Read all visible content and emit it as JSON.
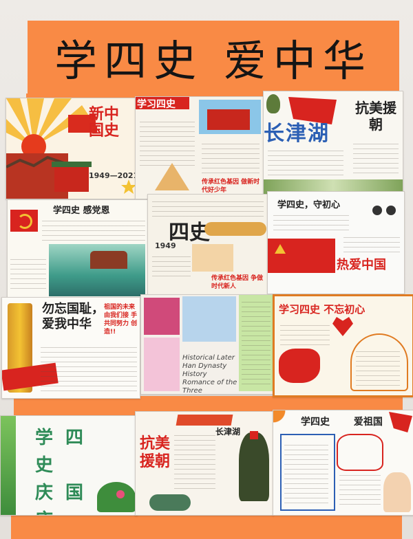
{
  "banner": {
    "title": "学四史 爱中华"
  },
  "posters": {
    "row1": [
      {
        "id": "new-china",
        "title": "新中国史",
        "dates": "1949—2021"
      },
      {
        "id": "party-history",
        "title": "学习四史",
        "footer": "传承红色基因 做新时代好少年"
      },
      {
        "id": "changjin-lake",
        "title": "长津湖",
        "subtitle": "抗美援朝"
      }
    ],
    "row2": [
      {
        "id": "party-reflection",
        "title": "学四史 感党恩"
      },
      {
        "id": "four-histories",
        "title": "四史",
        "year": "1949",
        "footer": "传承红色基因 争做时代新人"
      },
      {
        "id": "original-aspiration",
        "title": "学四史，守初心",
        "footer": "热爱中国"
      }
    ],
    "row3": [
      {
        "id": "never-forget",
        "title": "勿忘国耻，爱我中华",
        "side_note": "祖国的未来由我们接 手 共同努力 创造!!"
      },
      {
        "id": "history-collage",
        "text": "Historical Later Han Dynasty History Romance of the Three Kingdoms"
      },
      {
        "id": "never-forget-aspiration",
        "title": "学习四史 不忘初心"
      }
    ],
    "row4": [
      {
        "id": "national-day",
        "title": "学四史 庆国庆"
      },
      {
        "id": "korean-war",
        "title": "抗美援朝",
        "subtitle": "长津湖"
      },
      {
        "id": "love-country",
        "title": "学四史 爱祖国"
      }
    ]
  },
  "colors": {
    "banner": "#f98a45",
    "party_red": "#d8241f",
    "gold": "#f3c233",
    "paper": "#f7f3ea"
  }
}
